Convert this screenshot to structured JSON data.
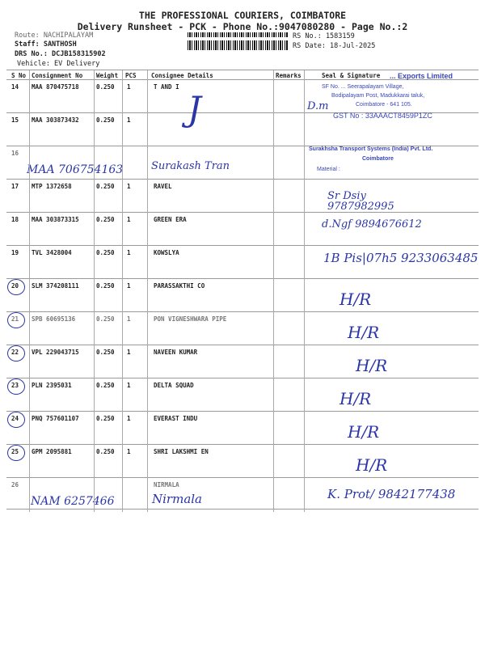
{
  "header": {
    "company": "THE PROFESSIONAL COURIERS, COIMBATORE",
    "subtitle": "Delivery Runsheet - PCK - Phone No.:9047080280 - Page No.:2",
    "route": "Route: NACHIPALAYAM",
    "staff": "Staff: SANTHOSH",
    "drs": "DRS No.: DCJB158315902",
    "vehicle": "Vehicle: EV Delivery",
    "rs_no": "RS No.: 1583159",
    "rs_date": "RS Date: 18-Jul-2025"
  },
  "table": {
    "columns": [
      "S No",
      "Consignment No",
      "Weight",
      "PCS",
      "Consignee Details",
      "Remarks",
      "Seal & Signature"
    ],
    "rows": [
      {
        "sno": "14",
        "cn": "MAA 870475718",
        "wt": "0.250",
        "pcs": "1",
        "name": "T AND I"
      },
      {
        "sno": "15",
        "cn": "MAA 303873432",
        "wt": "0.250",
        "pcs": "1",
        "name": ""
      },
      {
        "sno": "16",
        "cn": "",
        "wt": "",
        "pcs": "",
        "name": ""
      },
      {
        "sno": "17",
        "cn": "MTP 1372658",
        "wt": "0.250",
        "pcs": "1",
        "name": "RAVEL"
      },
      {
        "sno": "18",
        "cn": "MAA 303873315",
        "wt": "0.250",
        "pcs": "1",
        "name": "GREEN ERA"
      },
      {
        "sno": "19",
        "cn": "TVL 3428004",
        "wt": "0.250",
        "pcs": "1",
        "name": "KOWSLYA"
      },
      {
        "sno": "20",
        "cn": "SLM 374208111",
        "wt": "0.250",
        "pcs": "1",
        "name": "PARASSAKTHI CO"
      },
      {
        "sno": "21",
        "cn": "SPB 60695136",
        "wt": "0.250",
        "pcs": "1",
        "name": "PON VIGNESHWARA PIPE"
      },
      {
        "sno": "22",
        "cn": "VPL 229043715",
        "wt": "0.250",
        "pcs": "1",
        "name": "NAVEEN KUMAR"
      },
      {
        "sno": "23",
        "cn": "PLN 2395031",
        "wt": "0.250",
        "pcs": "1",
        "name": "DELTA SQUAD"
      },
      {
        "sno": "24",
        "cn": "PNQ 757601107",
        "wt": "0.250",
        "pcs": "1",
        "name": "EVERAST INDU"
      },
      {
        "sno": "25",
        "cn": "GPM 2095881",
        "wt": "0.250",
        "pcs": "1",
        "name": "SHRI LAKSHMI EN"
      },
      {
        "sno": "26",
        "cn": "",
        "wt": "",
        "pcs": "",
        "name": "NIRMALA"
      }
    ]
  },
  "handwriting": {
    "r16_cn": "MAA 706754163",
    "r16_name": "Surakash Tran",
    "r17_sig": "Sr Dsiy 9787982995",
    "r18_sig": "d.Ngf 9894676612",
    "r19_sig": "1B Pis|07h5 9233063485",
    "hr": "H/R",
    "r26_cn": "NAM 6257466",
    "r26_name": "Nirmala",
    "r26_sig": "K. Prot/ 9842177438"
  },
  "stamps": {
    "s1_l1": "... Exports Limited",
    "s1_l2": "SF No. ... Seerapalayam Village,",
    "s1_l3": "Bodipalayam Post, Madukkarai taluk,",
    "s1_l4": "Coimbatore - 641 105.",
    "s1_l5": "GST No : 33AAACT8459P1ZC",
    "s2_l1": "Surakhsha Transport Systems (India) Pvt. Ltd.",
    "s2_l2": "Coimbatore",
    "s2_l3": "Material :"
  },
  "colors": {
    "ink": "#2a35a8",
    "text": "#222222"
  }
}
